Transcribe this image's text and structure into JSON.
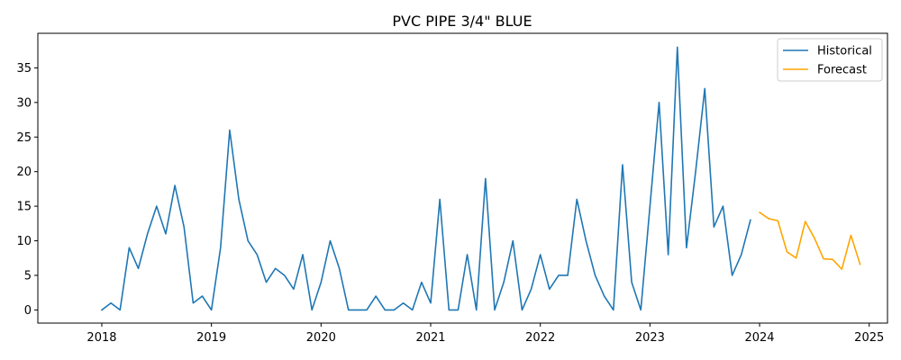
{
  "chart_data": {
    "type": "line",
    "title": "PVC PIPE 3/4\" BLUE",
    "xlabel": "",
    "ylabel": "",
    "x_ticks": [
      "2018",
      "2019",
      "2020",
      "2021",
      "2022",
      "2023",
      "2024",
      "2025"
    ],
    "y_ticks": [
      "0",
      "5",
      "10",
      "15",
      "20",
      "25",
      "30",
      "35"
    ],
    "xlim": [
      "2017-06",
      "2025-03"
    ],
    "ylim": [
      -1.9,
      40
    ],
    "grid": false,
    "legend_position": "top-right",
    "series": [
      {
        "name": "Historical",
        "color": "#1f77b4",
        "x": [
          "2018-01",
          "2018-02",
          "2018-03",
          "2018-04",
          "2018-05",
          "2018-06",
          "2018-07",
          "2018-08",
          "2018-09",
          "2018-10",
          "2018-11",
          "2018-12",
          "2019-01",
          "2019-02",
          "2019-03",
          "2019-04",
          "2019-05",
          "2019-06",
          "2019-07",
          "2019-08",
          "2019-09",
          "2019-10",
          "2019-11",
          "2019-12",
          "2020-01",
          "2020-02",
          "2020-03",
          "2020-04",
          "2020-05",
          "2020-06",
          "2020-07",
          "2020-08",
          "2020-09",
          "2020-10",
          "2020-11",
          "2020-12",
          "2021-01",
          "2021-02",
          "2021-03",
          "2021-04",
          "2021-05",
          "2021-06",
          "2021-07",
          "2021-08",
          "2021-09",
          "2021-10",
          "2021-11",
          "2021-12",
          "2022-01",
          "2022-02",
          "2022-03",
          "2022-04",
          "2022-05",
          "2022-06",
          "2022-07",
          "2022-08",
          "2022-09",
          "2022-10",
          "2022-11",
          "2022-12",
          "2023-01",
          "2023-02",
          "2023-03",
          "2023-04",
          "2023-05",
          "2023-06",
          "2023-07",
          "2023-08",
          "2023-09",
          "2023-10",
          "2023-11",
          "2023-12"
        ],
        "values": [
          0,
          1,
          0,
          9,
          6,
          11,
          15,
          11,
          18,
          12,
          1,
          2,
          0,
          9,
          26,
          16,
          10,
          8,
          4,
          6,
          5,
          3,
          8,
          0,
          4,
          10,
          6,
          0,
          0,
          0,
          2,
          0,
          0,
          1,
          0,
          4,
          1,
          16,
          0,
          0,
          8,
          0,
          19,
          0,
          4,
          10,
          0,
          3,
          8,
          3,
          5,
          5,
          16,
          10,
          5,
          2,
          0,
          21,
          4,
          0,
          15,
          30,
          8,
          38,
          9,
          20,
          32,
          12,
          15,
          5,
          8,
          13
        ]
      },
      {
        "name": "Forecast",
        "color": "#ffa500",
        "x": [
          "2024-01",
          "2024-02",
          "2024-03",
          "2024-04",
          "2024-05",
          "2024-06",
          "2024-07",
          "2024-08",
          "2024-09",
          "2024-10",
          "2024-11",
          "2024-12"
        ],
        "values": [
          14.1,
          13.2,
          12.9,
          8.4,
          7.5,
          12.8,
          10.4,
          7.4,
          7.3,
          5.9,
          10.8,
          6.6
        ]
      }
    ]
  }
}
